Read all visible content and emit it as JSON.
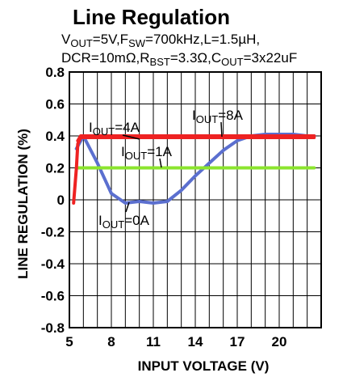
{
  "chart_data": {
    "type": "line",
    "title": "Line Regulation",
    "subtitle_line1": [
      {
        "t": "V",
        "s": 0
      },
      {
        "t": "OUT",
        "s": 1
      },
      {
        "t": "=5V,F",
        "s": 0
      },
      {
        "t": "SW",
        "s": 1
      },
      {
        "t": "=700kHz,L=1.5µH,",
        "s": 0
      }
    ],
    "subtitle_line2": [
      {
        "t": "DCR=10mΩ,R",
        "s": 0
      },
      {
        "t": "BST",
        "s": 1
      },
      {
        "t": "=3.3Ω,C",
        "s": 0
      },
      {
        "t": "OUT",
        "s": 1
      },
      {
        "t": "=3x22uF",
        "s": 0
      }
    ],
    "xlabel": "INPUT VOLTAGE (V)",
    "ylabel": "LINE REGULATION (%)",
    "xlim": [
      5,
      23
    ],
    "ylim": [
      -0.8,
      0.8
    ],
    "x_ticks": [
      5,
      8,
      11,
      14,
      17,
      20
    ],
    "y_ticks": [
      0.8,
      0.6,
      0.4,
      0.2,
      0,
      -0.2,
      -0.4,
      -0.6,
      -0.8
    ],
    "y_tick_labels": [
      "0.8",
      "0.6",
      "0.4",
      "0.2",
      "0",
      "-0.2",
      "-0.4",
      "-0.6",
      "-0.8"
    ],
    "grid": true,
    "series": [
      {
        "name": "IOUT=0A",
        "color": "#5b6fcf",
        "x": [
          5.5,
          6,
          7,
          8,
          9,
          10,
          11,
          12,
          13,
          14,
          15,
          16,
          17,
          18,
          19,
          20,
          21,
          22,
          22.5
        ],
        "y": [
          0.32,
          0.4,
          0.23,
          0.04,
          -0.02,
          -0.01,
          -0.02,
          -0.01,
          0.06,
          0.15,
          0.23,
          0.31,
          0.37,
          0.4,
          0.41,
          0.41,
          0.41,
          0.4,
          0.4
        ]
      },
      {
        "name": "IOUT=1A",
        "color": "#8be52e",
        "x": [
          5.5,
          6,
          8,
          10,
          12,
          14,
          16,
          18,
          20,
          22,
          22.5
        ],
        "y": [
          0.2,
          0.2,
          0.2,
          0.2,
          0.2,
          0.2,
          0.2,
          0.2,
          0.2,
          0.2,
          0.2
        ]
      },
      {
        "name": "IOUT=4A",
        "color": "#ee2222",
        "x": [
          5.3,
          5.5,
          5.6,
          5.8,
          6,
          8,
          10,
          12,
          14,
          16,
          18,
          20,
          22,
          22.5
        ],
        "y": [
          -0.02,
          0.2,
          0.35,
          0.39,
          0.39,
          0.39,
          0.39,
          0.39,
          0.39,
          0.39,
          0.39,
          0.39,
          0.39,
          0.39
        ]
      },
      {
        "name": "IOUT=8A",
        "color": "#ee2222",
        "x": [
          5.6,
          5.8,
          6,
          8,
          10,
          12,
          14,
          16,
          18,
          20,
          22,
          22.5
        ],
        "y": [
          0.37,
          0.4,
          0.4,
          0.4,
          0.4,
          0.4,
          0.4,
          0.4,
          0.4,
          0.4,
          0.4,
          0.4
        ]
      }
    ],
    "annotations": [
      {
        "label": [
          {
            "t": "I",
            "s": 0
          },
          {
            "t": "OUT",
            "s": 1
          },
          {
            "t": "=4A",
            "s": 0
          }
        ],
        "anchor": [
          6.2,
          0.4
        ]
      },
      {
        "label": [
          {
            "t": "I",
            "s": 0
          },
          {
            "t": "OUT",
            "s": 1
          },
          {
            "t": "=8A",
            "s": 0
          }
        ],
        "anchor": [
          16.6,
          0.4
        ]
      },
      {
        "label": [
          {
            "t": "I",
            "s": 0
          },
          {
            "t": "OUT",
            "s": 1
          },
          {
            "t": "=1A",
            "s": 0
          }
        ],
        "anchor": [
          12.0,
          0.2
        ]
      },
      {
        "label": [
          {
            "t": "I",
            "s": 0
          },
          {
            "t": "OUT",
            "s": 1
          },
          {
            "t": "=0A",
            "s": 0
          }
        ],
        "anchor": [
          9.8,
          -0.01
        ]
      }
    ]
  }
}
